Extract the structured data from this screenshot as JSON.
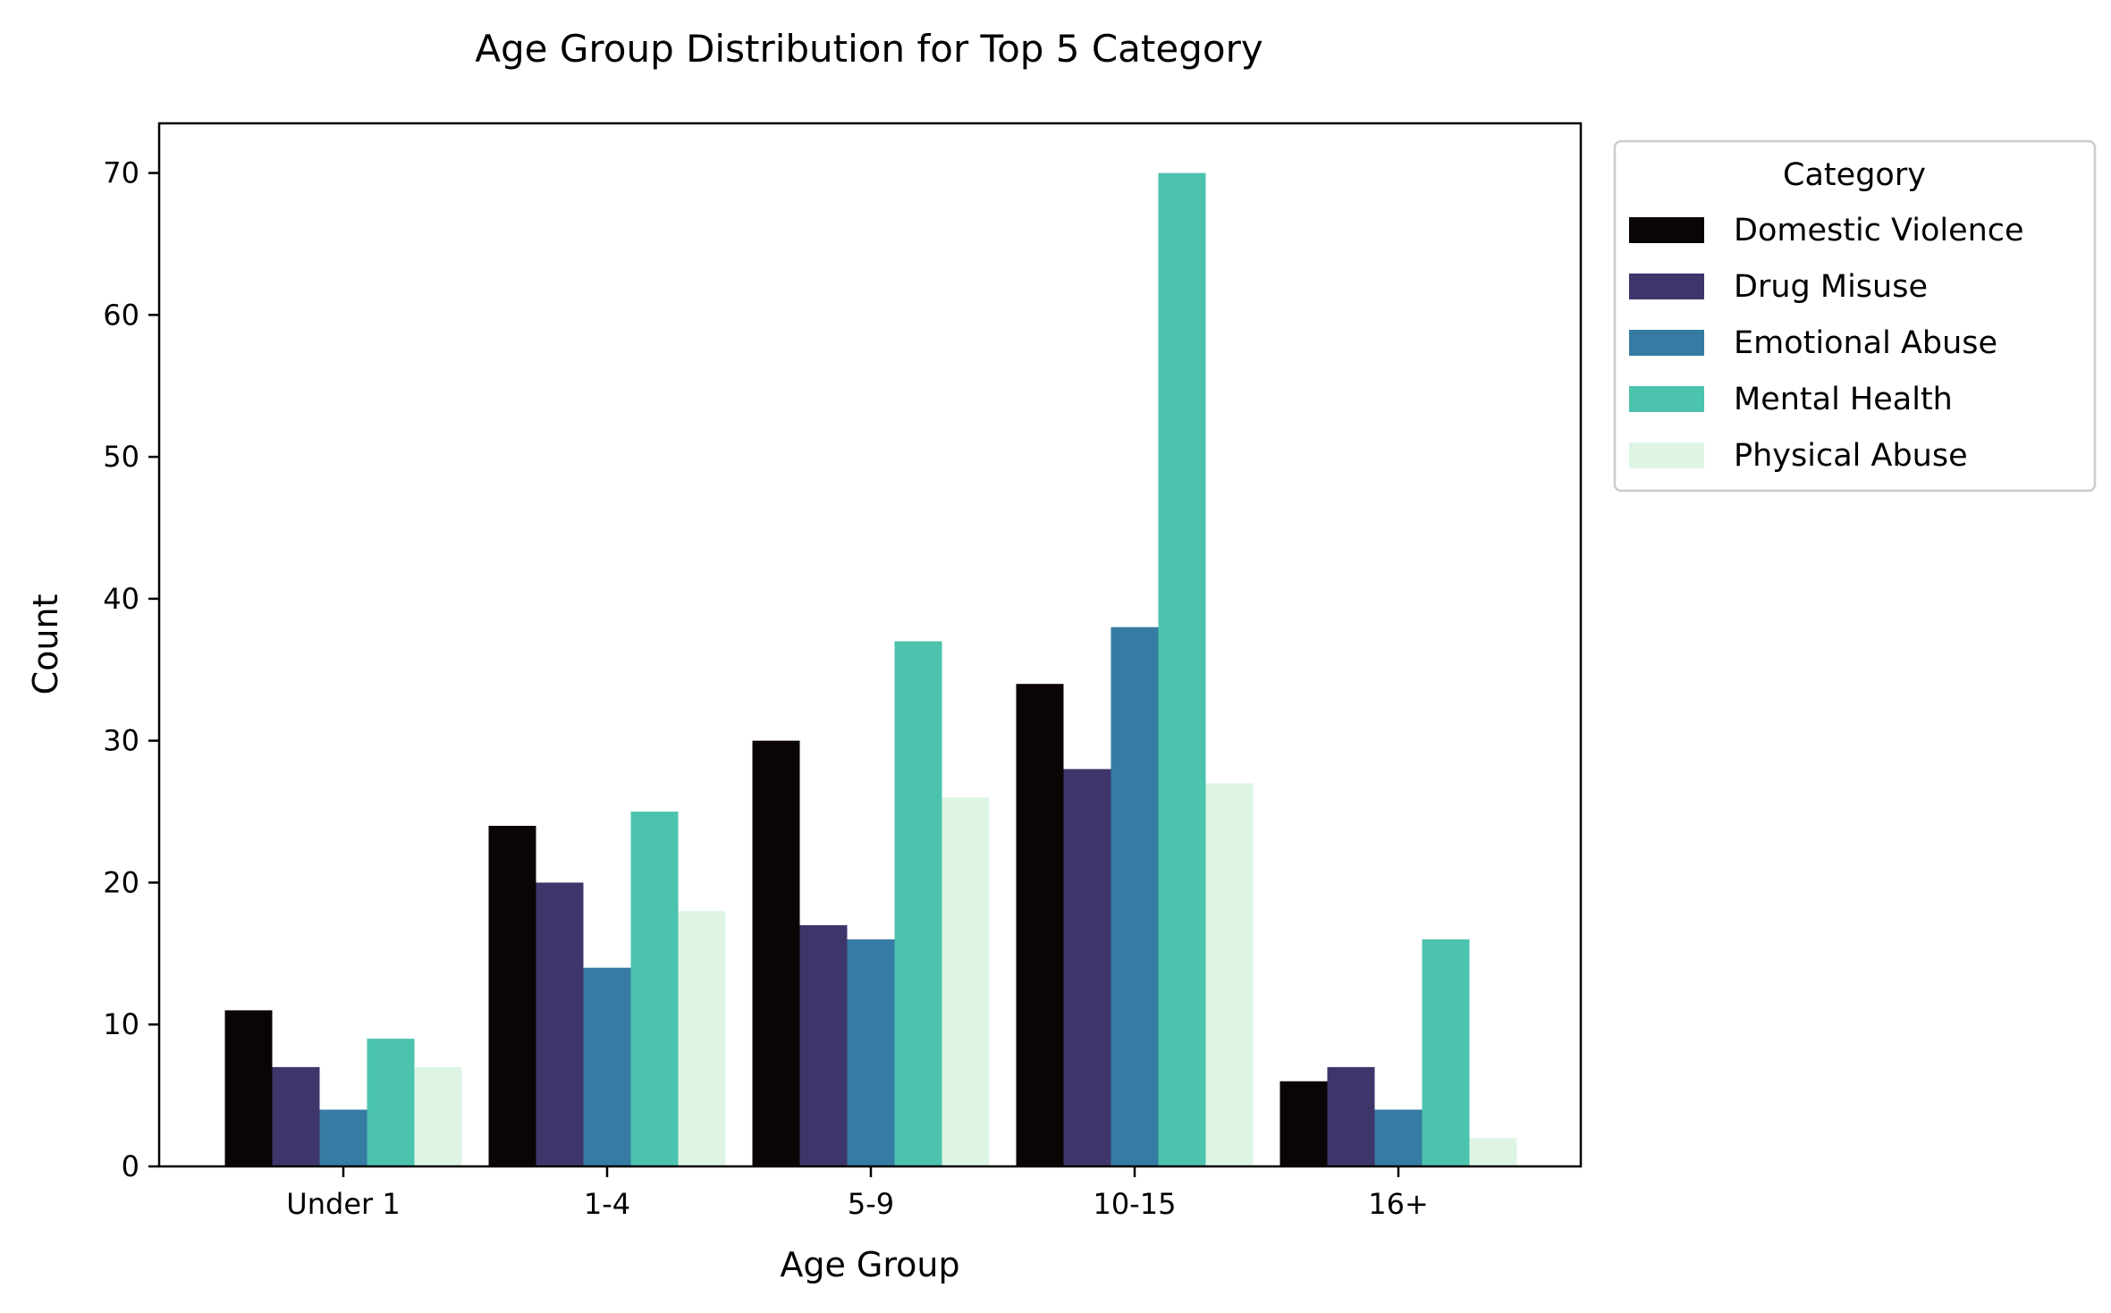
{
  "chart_data": {
    "type": "bar",
    "title": "Age Group Distribution for Top 5 Category",
    "xlabel": "Age Group",
    "ylabel": "Count",
    "categories": [
      "Under 1",
      "1-4",
      "5-9",
      "10-15",
      "16+"
    ],
    "ylim": [
      0,
      73.5
    ],
    "yticks": [
      0,
      10,
      20,
      30,
      40,
      50,
      60,
      70
    ],
    "grid": false,
    "legend": {
      "title": "Category",
      "placement": "outside-top-right"
    },
    "series": [
      {
        "name": "Domestic Violence",
        "color": "#0b0405",
        "values": [
          11,
          24,
          30,
          34,
          6
        ]
      },
      {
        "name": "Drug Misuse",
        "color": "#3e356b",
        "values": [
          7,
          20,
          17,
          28,
          7
        ]
      },
      {
        "name": "Emotional Abuse",
        "color": "#357ba3",
        "values": [
          4,
          14,
          16,
          38,
          4
        ]
      },
      {
        "name": "Mental Health",
        "color": "#4cc3ad",
        "values": [
          9,
          25,
          37,
          70,
          16
        ]
      },
      {
        "name": "Physical Abuse",
        "color": "#def5e5",
        "values": [
          7,
          18,
          26,
          27,
          2
        ]
      }
    ]
  }
}
